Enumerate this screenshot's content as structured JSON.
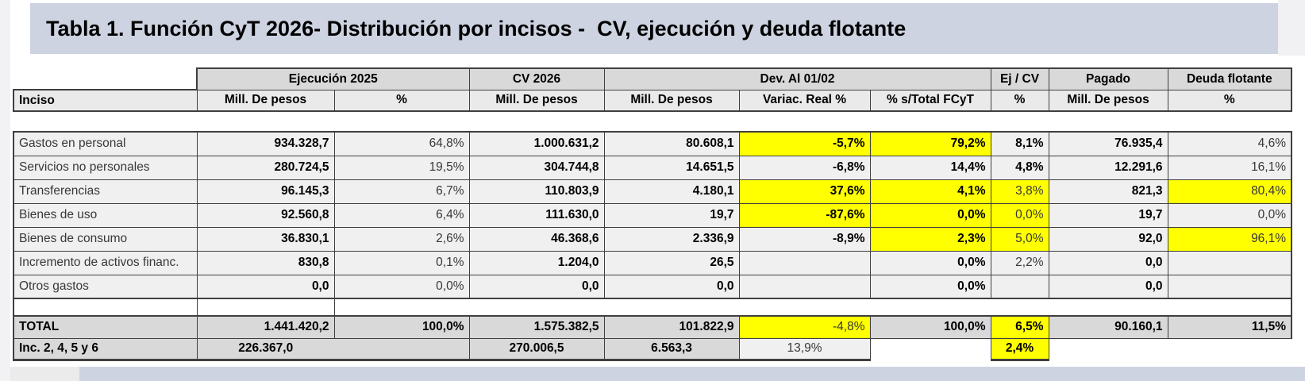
{
  "title": "Tabla 1. Función CyT 2026- Distribución por incisos -  CV, ejecución y deuda flotante",
  "colors": {
    "highlight": "#ffff00",
    "band": "#cdd3e1",
    "header_dark": "#d9d9d9",
    "header_light": "#eaeaea",
    "cell_bg": "#f0f0f0",
    "border": "#3f3f3f"
  },
  "table": {
    "group_headers": [
      {
        "label": "Ejecución 2025",
        "span": 2
      },
      {
        "label": "CV 2026",
        "span": 1
      },
      {
        "label": "Dev. Al 01/02",
        "span": 3
      },
      {
        "label": "Ej / CV",
        "span": 1
      },
      {
        "label": "Pagado",
        "span": 1
      },
      {
        "label": "Deuda flotante",
        "span": 1
      }
    ],
    "sub_headers": [
      "Inciso",
      "Mill. De pesos",
      "%",
      "Mill. De pesos",
      "Mill. De pesos",
      "Variac. Real %",
      "% s/Total FCyT",
      "%",
      "Mill. De pesos",
      "%"
    ],
    "body": [
      {
        "type": "spacer",
        "variant": "open",
        "name": "spacer-row"
      },
      {
        "type": "data",
        "name": "row-gastos-en-personal",
        "cells": [
          {
            "v": "Gastos en personal",
            "a": "l"
          },
          {
            "v": "934.328,7",
            "b": 1
          },
          {
            "v": "64,8%"
          },
          {
            "v": "1.000.631,2",
            "b": 1
          },
          {
            "v": "80.608,1",
            "b": 1
          },
          {
            "v": "-5,7%",
            "b": 1,
            "y": 1
          },
          {
            "v": "79,2%",
            "b": 1,
            "y": 1
          },
          {
            "v": "8,1%",
            "b": 1
          },
          {
            "v": "76.935,4",
            "b": 1
          },
          {
            "v": "4,6%"
          }
        ]
      },
      {
        "type": "data",
        "name": "row-servicios-no-personales",
        "cells": [
          {
            "v": "Servicios no personales",
            "a": "l"
          },
          {
            "v": "280.724,5",
            "b": 1
          },
          {
            "v": "19,5%"
          },
          {
            "v": "304.744,8",
            "b": 1
          },
          {
            "v": "14.651,5",
            "b": 1
          },
          {
            "v": "-6,8%",
            "b": 1
          },
          {
            "v": "14,4%",
            "b": 1
          },
          {
            "v": "4,8%",
            "b": 1
          },
          {
            "v": "12.291,6",
            "b": 1
          },
          {
            "v": "16,1%"
          }
        ]
      },
      {
        "type": "data",
        "name": "row-transferencias",
        "cells": [
          {
            "v": "Transferencias",
            "a": "l"
          },
          {
            "v": "96.145,3",
            "b": 1
          },
          {
            "v": "6,7%"
          },
          {
            "v": "110.803,9",
            "b": 1
          },
          {
            "v": "4.180,1",
            "b": 1
          },
          {
            "v": "37,6%",
            "b": 1,
            "y": 1
          },
          {
            "v": "4,1%",
            "b": 1,
            "y": 1
          },
          {
            "v": "3,8%",
            "y": 1
          },
          {
            "v": "821,3",
            "b": 1
          },
          {
            "v": "80,4%",
            "y": 1
          }
        ]
      },
      {
        "type": "data",
        "name": "row-bienes-de-uso",
        "cells": [
          {
            "v": "Bienes de uso",
            "a": "l"
          },
          {
            "v": "92.560,8",
            "b": 1
          },
          {
            "v": "6,4%"
          },
          {
            "v": "111.630,0",
            "b": 1
          },
          {
            "v": "19,7",
            "b": 1
          },
          {
            "v": "-87,6%",
            "b": 1,
            "y": 1
          },
          {
            "v": "0,0%",
            "b": 1,
            "y": 1
          },
          {
            "v": "0,0%",
            "y": 1
          },
          {
            "v": "19,7",
            "b": 1
          },
          {
            "v": "0,0%"
          }
        ]
      },
      {
        "type": "data",
        "name": "row-bienes-de-consumo",
        "cells": [
          {
            "v": "Bienes de consumo",
            "a": "l"
          },
          {
            "v": "36.830,1",
            "b": 1
          },
          {
            "v": "2,6%"
          },
          {
            "v": "46.368,6",
            "b": 1
          },
          {
            "v": "2.336,9",
            "b": 1
          },
          {
            "v": "-8,9%",
            "b": 1
          },
          {
            "v": "2,3%",
            "b": 1,
            "y": 1
          },
          {
            "v": "5,0%",
            "y": 1
          },
          {
            "v": "92,0",
            "b": 1
          },
          {
            "v": "96,1%",
            "y": 1
          }
        ]
      },
      {
        "type": "data",
        "name": "row-incremento-activos-financ",
        "cells": [
          {
            "v": "Incremento de activos financ.",
            "a": "l"
          },
          {
            "v": "830,8",
            "b": 1
          },
          {
            "v": "0,1%"
          },
          {
            "v": "1.204,0",
            "b": 1
          },
          {
            "v": "26,5",
            "b": 1
          },
          {
            "v": ""
          },
          {
            "v": "0,0%",
            "b": 1
          },
          {
            "v": "2,2%"
          },
          {
            "v": "0,0",
            "b": 1
          },
          {
            "v": ""
          }
        ]
      },
      {
        "type": "data",
        "name": "row-otros-gastos",
        "cells": [
          {
            "v": "Otros gastos",
            "a": "l"
          },
          {
            "v": "0,0",
            "b": 1
          },
          {
            "v": "0,0%"
          },
          {
            "v": "0,0",
            "b": 1
          },
          {
            "v": "0,0",
            "b": 1
          },
          {
            "v": ""
          },
          {
            "v": "0,0%",
            "b": 1
          },
          {
            "v": ""
          },
          {
            "v": "0,0",
            "b": 1
          },
          {
            "v": ""
          }
        ]
      },
      {
        "type": "spacer",
        "variant": "partial",
        "name": "spacer-row"
      },
      {
        "type": "total",
        "name": "total-row",
        "cells": [
          {
            "v": "TOTAL",
            "a": "l",
            "b": 1
          },
          {
            "v": "1.441.420,2",
            "b": 1
          },
          {
            "v": "100,0%",
            "b": 1
          },
          {
            "v": "1.575.382,5",
            "b": 1
          },
          {
            "v": "101.822,9",
            "b": 1
          },
          {
            "v": "-4,8%",
            "y": 1
          },
          {
            "v": "100,0%",
            "b": 1
          },
          {
            "v": "6,5%",
            "b": 1,
            "y": 1
          },
          {
            "v": "90.160,1",
            "b": 1
          },
          {
            "v": "11,5%",
            "b": 1
          }
        ]
      },
      {
        "type": "inc",
        "name": "inc-row",
        "cells": [
          {
            "v": "Inc. 2, 4, 5 y 6",
            "a": "l",
            "b": 1
          },
          {
            "v": "226.367,0",
            "b": 1,
            "a": "c"
          },
          {
            "v": "",
            "ml": 1
          },
          {
            "v": "270.006,5",
            "b": 1,
            "a": "c"
          },
          {
            "v": "6.563,3",
            "b": 1,
            "a": "c"
          },
          {
            "v": "13,9%",
            "a": "c",
            "light": 1
          },
          {
            "v": "",
            "blank": 1
          },
          {
            "v": "2,4%",
            "b": 1,
            "y": 1,
            "a": "c"
          },
          {
            "v": "",
            "blank": 1
          },
          {
            "v": "",
            "blank": 1
          }
        ]
      }
    ]
  }
}
